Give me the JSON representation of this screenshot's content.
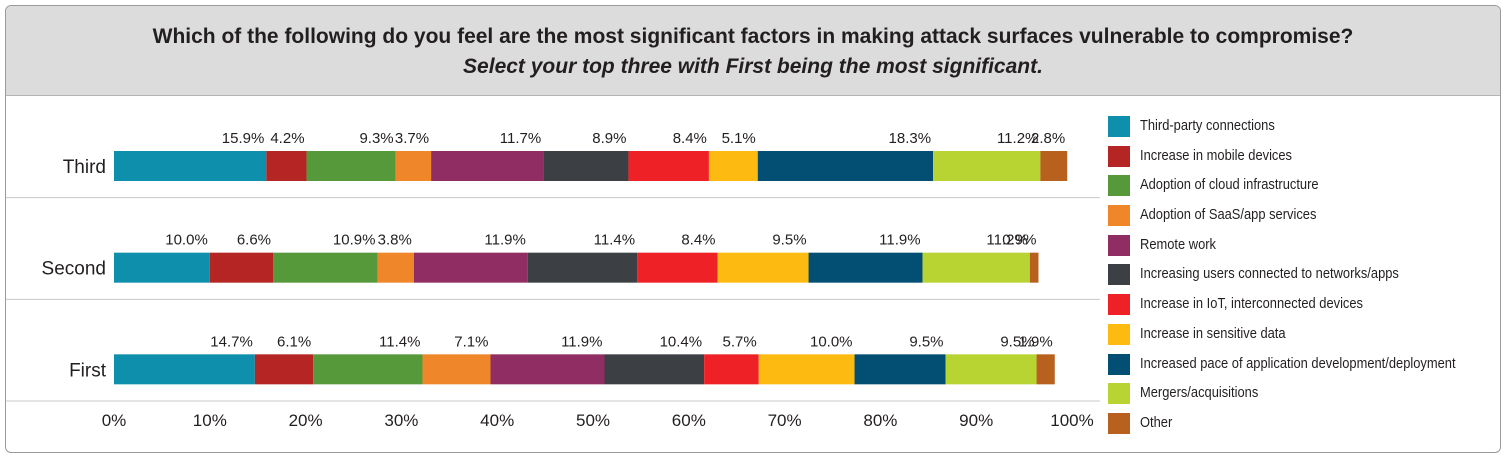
{
  "chart_data": {
    "type": "bar",
    "orientation": "horizontal",
    "stacked": true,
    "title": "Which of the following do you feel are the most significant factors in making attack surfaces vulnerable to compromise?",
    "subtitle": "Select your top three with First being the most significant.",
    "categories": [
      "Third",
      "Second",
      "First"
    ],
    "xlim": [
      0,
      100
    ],
    "x_ticks": [
      "0%",
      "10%",
      "20%",
      "30%",
      "40%",
      "50%",
      "60%",
      "70%",
      "80%",
      "90%",
      "100%"
    ],
    "legend_position": "right",
    "grid": false,
    "series": [
      {
        "name": "Third-party connections",
        "color": "#0e8fab",
        "values": [
          15.9,
          10.0,
          14.7
        ]
      },
      {
        "name": "Increase in mobile devices",
        "color": "#b42524",
        "values": [
          4.2,
          6.6,
          6.1
        ]
      },
      {
        "name": "Adoption of cloud infrastructure",
        "color": "#56993a",
        "values": [
          9.3,
          10.9,
          11.4
        ]
      },
      {
        "name": "Adoption of SaaS/app services",
        "color": "#f0862a",
        "values": [
          3.7,
          3.8,
          7.1
        ]
      },
      {
        "name": "Remote work",
        "color": "#902d63",
        "values": [
          11.7,
          11.9,
          11.9
        ]
      },
      {
        "name": "Increasing users connected to networks/apps",
        "color": "#3c4044",
        "values": [
          8.9,
          11.4,
          10.4
        ]
      },
      {
        "name": "Increase in IoT, interconnected devices",
        "color": "#ee2127",
        "values": [
          8.4,
          8.4,
          5.7
        ]
      },
      {
        "name": "Increase in sensitive data",
        "color": "#fdbb11",
        "values": [
          5.1,
          9.5,
          10.0
        ]
      },
      {
        "name": "Increased pace of application development/deployment",
        "color": "#034f73",
        "values": [
          18.3,
          11.9,
          9.5
        ]
      },
      {
        "name": "Mergers/acquisitions",
        "color": "#b8d432",
        "values": [
          11.2,
          11.2,
          9.5
        ]
      },
      {
        "name": "Other",
        "color": "#b8601e",
        "values": [
          2.8,
          0.9,
          1.9
        ]
      }
    ]
  }
}
